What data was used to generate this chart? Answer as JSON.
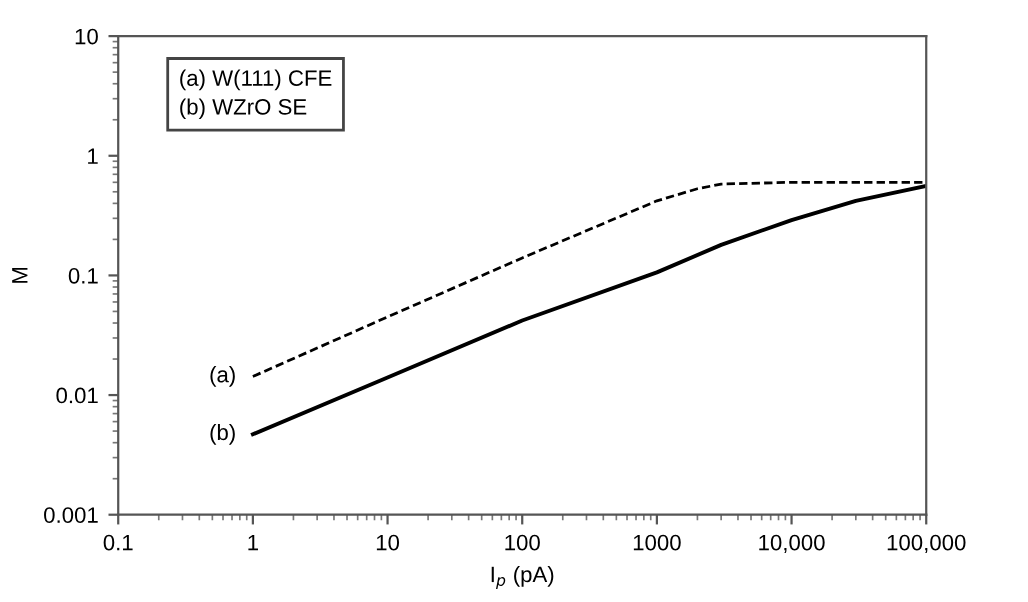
{
  "chart_data": {
    "type": "line",
    "xlabel": "I$_{p}$ (pA)",
    "ylabel": "M",
    "log": "xy",
    "grid": false,
    "legend": false,
    "xlim": [
      0.1,
      100000
    ],
    "ylim": [
      0.001,
      10
    ],
    "xticks": [
      0.1,
      1,
      10,
      100,
      1000,
      {
        "value": 10000,
        "label": "10,000"
      },
      {
        "value": 100000,
        "label": "100,000"
      }
    ],
    "yticks": [
      0.001,
      0.01,
      0.1,
      1,
      10
    ],
    "annotations": [
      "(a) W(111) CFE",
      "(b) WZrO SE"
    ],
    "series": [
      {
        "name": "(a)",
        "color": "#000000",
        "line_style": "dashed",
        "x": [
          1,
          10,
          100,
          1000,
          2000,
          3000,
          10000,
          100000
        ],
        "values": [
          0.0143,
          0.045,
          0.14,
          0.42,
          0.53,
          0.58,
          0.6,
          0.6
        ]
      },
      {
        "name": "(b)",
        "color": "#000000",
        "line_style": "solid",
        "x": [
          1,
          10,
          100,
          1000,
          3000,
          10000,
          30000,
          100000
        ],
        "values": [
          0.0047,
          0.014,
          0.042,
          0.106,
          0.18,
          0.29,
          0.42,
          0.56
        ]
      }
    ]
  }
}
